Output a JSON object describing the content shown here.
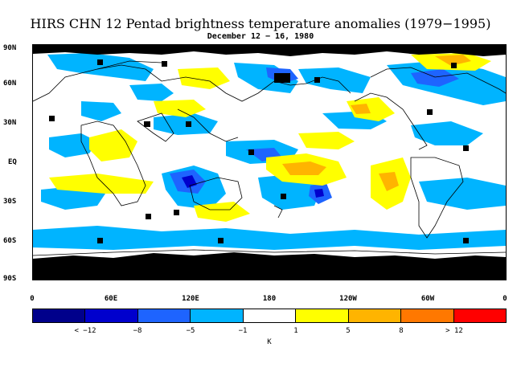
{
  "title": "HIRS CHN 12 Pentad brightness temperature anomalies (1979−1995)",
  "subtitle": "December 12 − 16, 1980",
  "lat_labels": [
    "90N",
    "60N",
    "30N",
    "EQ",
    "30S",
    "60S",
    "90S"
  ],
  "lon_labels": [
    "0",
    "60E",
    "120E",
    "180",
    "120W",
    "60W",
    "0"
  ],
  "colorbar": {
    "colors": [
      "#00008b",
      "#0000cd",
      "#1e64ff",
      "#00b4ff",
      "#ffffff",
      "#ffff00",
      "#ffb400",
      "#ff7800",
      "#ff0000"
    ],
    "labels": [
      "< −12",
      "−8",
      "−5",
      "−1",
      "1",
      "5",
      "8",
      "> 12"
    ],
    "unit": "K"
  },
  "map_colors": {
    "missing": "#000000",
    "coast": "#000000",
    "light_blue": "#00b4ff",
    "blue": "#1e64ff",
    "dark_blue": "#0000cd",
    "yellow": "#ffff00",
    "orange": "#ffb400"
  }
}
